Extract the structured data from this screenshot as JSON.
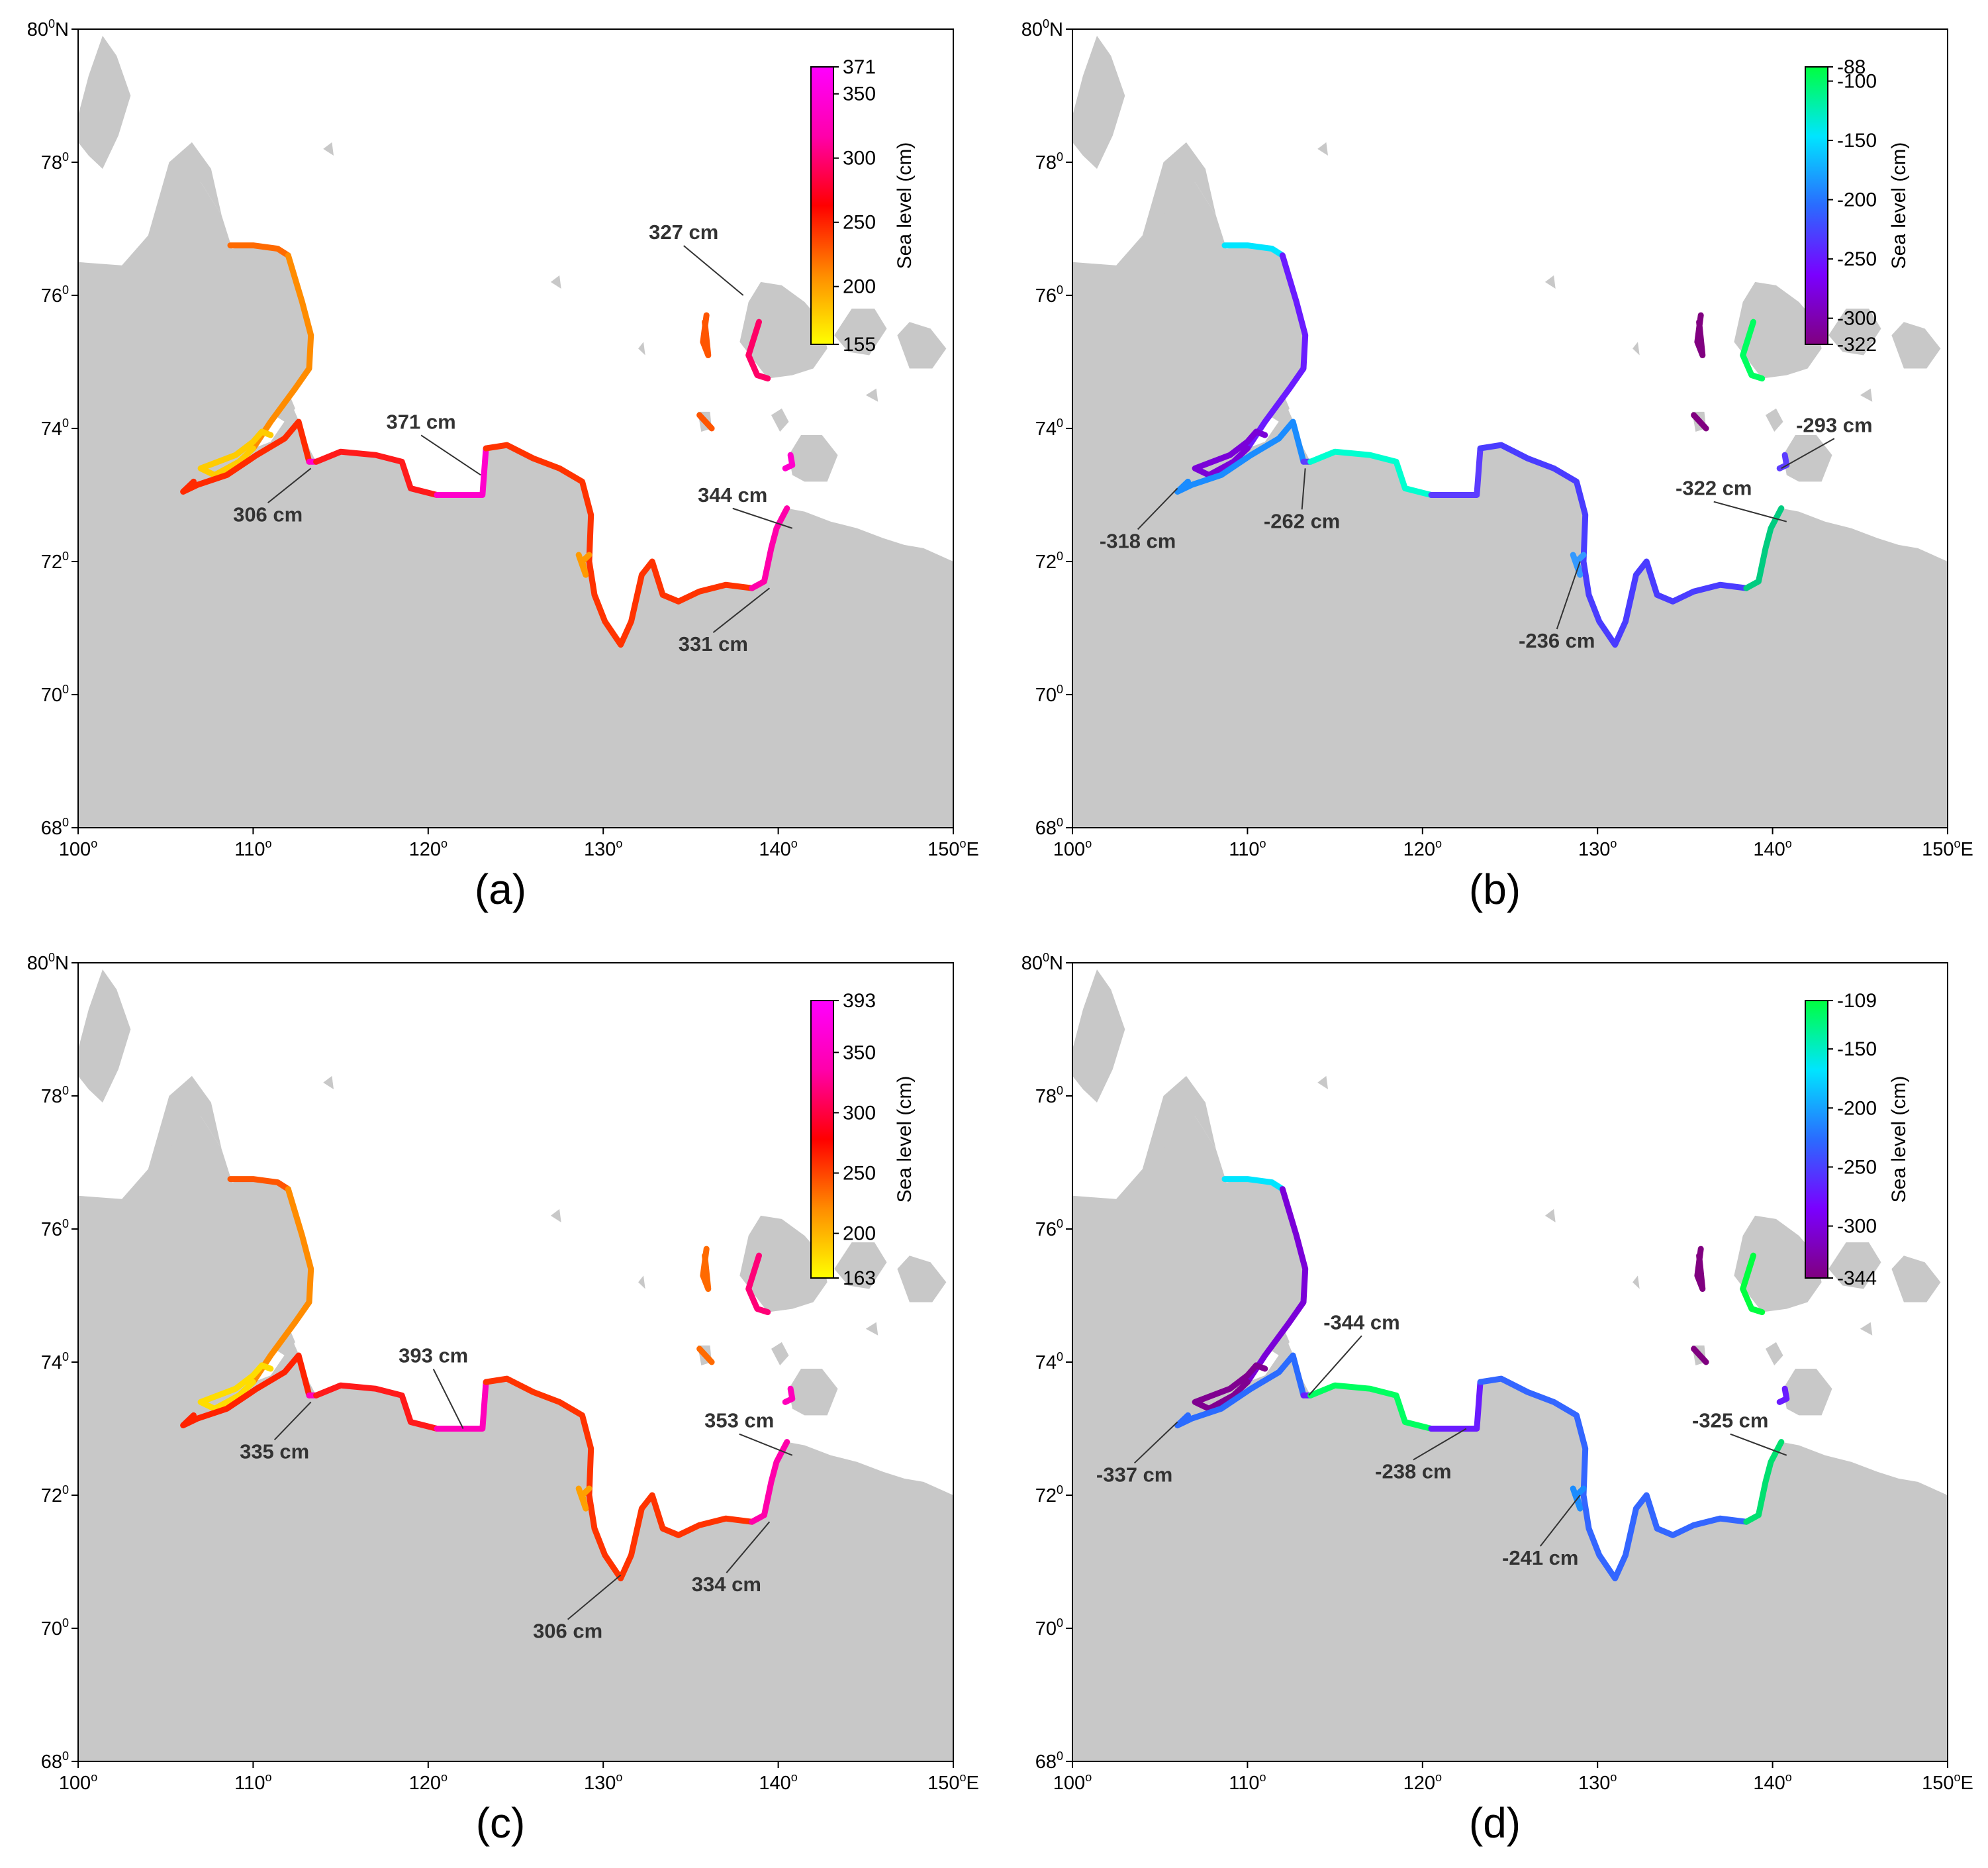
{
  "map_extent": {
    "lon_min": 100,
    "lon_max": 150,
    "lat_min": 68,
    "lat_max": 80
  },
  "lon_ticks": [
    {
      "value": 100,
      "label": "100",
      "deg": "o",
      "suffix": ""
    },
    {
      "value": 110,
      "label": "110",
      "deg": "o",
      "suffix": ""
    },
    {
      "value": 120,
      "label": "120",
      "deg": "o",
      "suffix": ""
    },
    {
      "value": 130,
      "label": "130",
      "deg": "o",
      "suffix": ""
    },
    {
      "value": 140,
      "label": "140",
      "deg": "o",
      "suffix": ""
    },
    {
      "value": 150,
      "label": "150",
      "deg": "o",
      "suffix": "E"
    }
  ],
  "lat_ticks": [
    {
      "value": 68,
      "label": "68",
      "deg": "0",
      "suffix": ""
    },
    {
      "value": 70,
      "label": "70",
      "deg": "0",
      "suffix": ""
    },
    {
      "value": 72,
      "label": "72",
      "deg": "0",
      "suffix": ""
    },
    {
      "value": 74,
      "label": "74",
      "deg": "0",
      "suffix": ""
    },
    {
      "value": 76,
      "label": "76",
      "deg": "0",
      "suffix": ""
    },
    {
      "value": 78,
      "label": "78",
      "deg": "0",
      "suffix": ""
    },
    {
      "value": 80,
      "label": "80",
      "deg": "0",
      "suffix": "N"
    }
  ],
  "colors": {
    "land": "#c8c8c8",
    "sea": "#ffffff"
  },
  "panels": [
    {
      "label": "(a)",
      "colorbar": {
        "title": "Sea level (cm)",
        "min": 155,
        "max": 371,
        "ticks": [
          "371",
          "350",
          "300",
          "250",
          "200",
          "155"
        ],
        "tick_values": [
          371,
          350,
          300,
          250,
          200,
          155
        ],
        "gradient": [
          "#ffff00",
          "#ff8c00",
          "#ff0000",
          "#ff00aa",
          "#ff00ff"
        ]
      },
      "annotations": [
        {
          "text": "327 cm",
          "lon": 138.0,
          "lat": 76.0
        },
        {
          "text": "371 cm",
          "lon": 123.0,
          "lat": 73.3
        },
        {
          "text": "306 cm",
          "lon": 113.3,
          "lat": 73.4
        },
        {
          "text": "344 cm",
          "lon": 140.8,
          "lat": 72.5
        },
        {
          "text": "331 cm",
          "lon": 139.5,
          "lat": 71.6
        }
      ],
      "coast_colors": [
        "#ff6a00",
        "#ff8c00",
        "#ffcc00",
        "#ff2a00",
        "#ff00cc",
        "#ff1a1a",
        "#ff9a00",
        "#ff3300",
        "#ff0066",
        "#ff00aa",
        "#ff5500"
      ]
    },
    {
      "label": "(b)",
      "colorbar": {
        "title": "Sea level (cm)",
        "min": -322,
        "max": -88,
        "ticks": [
          "-88",
          "-100",
          "-150",
          "-200",
          "-250",
          "-300",
          "-322"
        ],
        "tick_values": [
          -88,
          -100,
          -150,
          -200,
          -250,
          -300,
          -322
        ],
        "gradient": [
          "#800080",
          "#7a00ff",
          "#2a6bff",
          "#00e5ff",
          "#00ff40"
        ]
      },
      "annotations": [
        {
          "text": "-293 cm",
          "lon": 140.5,
          "lat": 73.4
        },
        {
          "text": "-322 cm",
          "lon": 140.8,
          "lat": 72.6
        },
        {
          "text": "-318 cm",
          "lon": 106.0,
          "lat": 73.1
        },
        {
          "text": "-262 cm",
          "lon": 113.3,
          "lat": 73.4
        },
        {
          "text": "-236 cm",
          "lon": 129.0,
          "lat": 72.0
        }
      ],
      "coast_colors": [
        "#00e5ff",
        "#6a1bff",
        "#7a00d8",
        "#1a8cff",
        "#5c3cff",
        "#00ffd0",
        "#3399ff",
        "#4a3cff",
        "#00ff60",
        "#00cc80",
        "#800080"
      ]
    },
    {
      "label": "(c)",
      "colorbar": {
        "title": "Sea level (cm)",
        "min": 163,
        "max": 393,
        "ticks": [
          "393",
          "350",
          "300",
          "250",
          "200",
          "163"
        ],
        "tick_values": [
          393,
          350,
          300,
          250,
          200,
          163
        ],
        "gradient": [
          "#ffff00",
          "#ff8c00",
          "#ff0000",
          "#ff00aa",
          "#ff00ff"
        ]
      },
      "annotations": [
        {
          "text": "393 cm",
          "lon": 122.0,
          "lat": 73.0
        },
        {
          "text": "335 cm",
          "lon": 113.3,
          "lat": 73.4
        },
        {
          "text": "353 cm",
          "lon": 140.8,
          "lat": 72.6
        },
        {
          "text": "306 cm",
          "lon": 131.0,
          "lat": 70.8
        },
        {
          "text": "334 cm",
          "lon": 139.5,
          "lat": 71.6
        }
      ],
      "coast_colors": [
        "#ff5500",
        "#ff8c00",
        "#ffdd00",
        "#ff2200",
        "#ff00bb",
        "#ff1a1a",
        "#ffa000",
        "#ff3300",
        "#ff0077",
        "#ff00aa",
        "#ff6a00"
      ]
    },
    {
      "label": "(d)",
      "colorbar": {
        "title": "Sea level (cm)",
        "min": -344,
        "max": -109,
        "ticks": [
          "-109",
          "-150",
          "-200",
          "-250",
          "-300",
          "-344"
        ],
        "tick_values": [
          -109,
          -150,
          -200,
          -250,
          -300,
          -344
        ],
        "gradient": [
          "#800080",
          "#7a00ff",
          "#2a6bff",
          "#00e5ff",
          "#00ff40"
        ]
      },
      "annotations": [
        {
          "text": "-344 cm",
          "lon": 113.5,
          "lat": 73.5
        },
        {
          "text": "-337 cm",
          "lon": 106.0,
          "lat": 73.1
        },
        {
          "text": "-238 cm",
          "lon": 122.5,
          "lat": 73.0
        },
        {
          "text": "-325 cm",
          "lon": 140.8,
          "lat": 72.6
        },
        {
          "text": "-241 cm",
          "lon": 129.0,
          "lat": 72.0
        }
      ],
      "coast_colors": [
        "#00e5ff",
        "#7a00d8",
        "#800090",
        "#2a6bff",
        "#6a1bff",
        "#00ff60",
        "#1a8cff",
        "#3366ff",
        "#00ff40",
        "#00e070",
        "#800080"
      ]
    }
  ]
}
